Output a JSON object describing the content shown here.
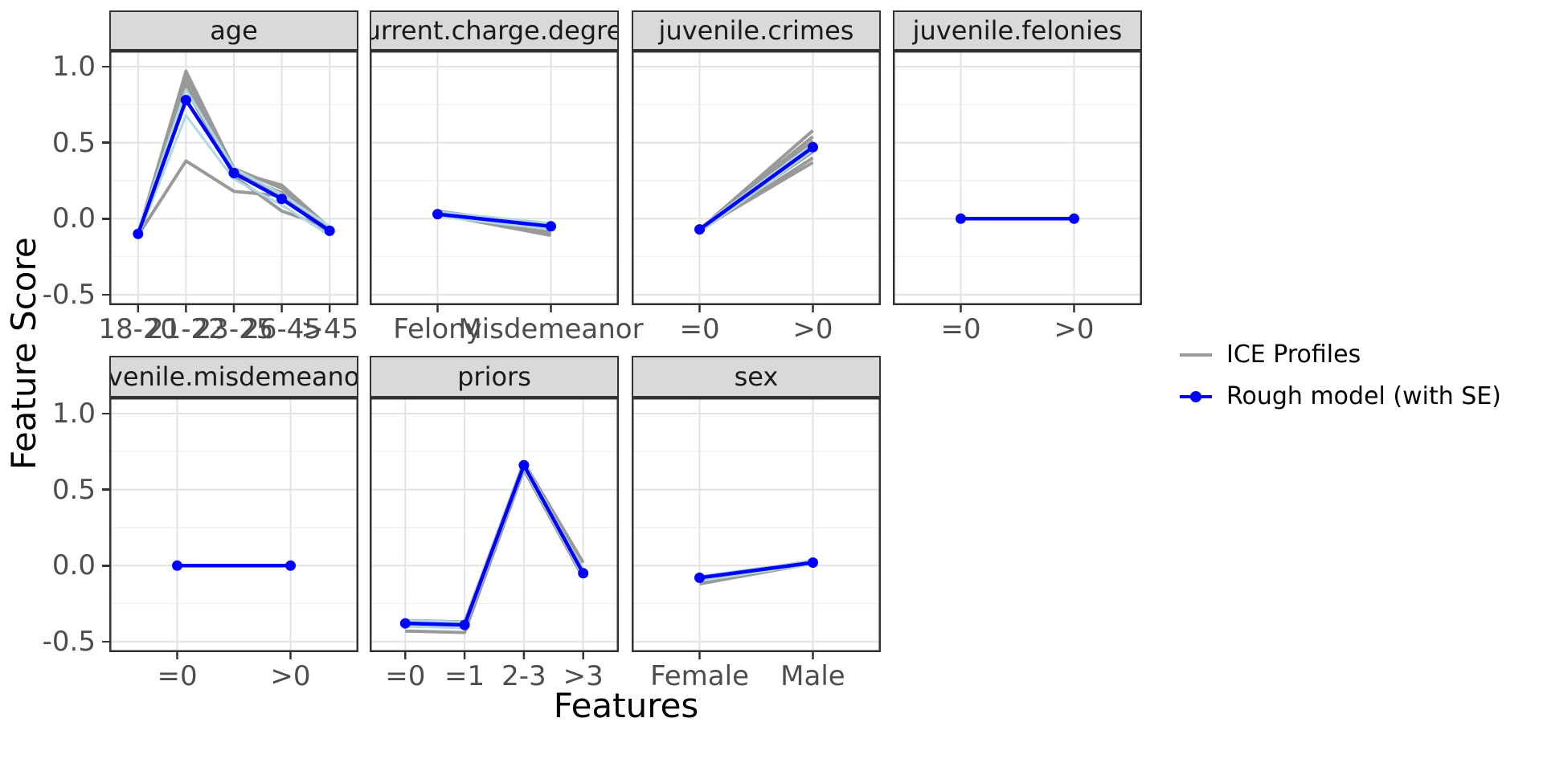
{
  "figure": {
    "y_axis_title": "Feature Score",
    "x_axis_title": "Features",
    "y_ticks": [
      "1.0",
      "0.5",
      "0.0",
      "-0.5"
    ],
    "y_tick_values": [
      1.0,
      0.5,
      0.0,
      -0.5
    ],
    "y_minor_values": [
      0.75,
      0.25,
      -0.25
    ],
    "legend": [
      {
        "label": "ICE Profiles",
        "key": "gray-line",
        "color": "#999999"
      },
      {
        "label": "Rough model (with SE)",
        "key": "blue-line-with-point",
        "color": "#0000FF"
      }
    ],
    "colors": {
      "ice": "#999999",
      "rough": "#0000FF",
      "se": "#ADD8E6",
      "grid_major": "#e3e3e3",
      "grid_minor": "#f1f1f1",
      "frame": "#333333",
      "strip_bg": "#d9d9d9",
      "tick": "#333333",
      "tick_text": "#4d4d4d"
    }
  },
  "chart_data": {
    "type": "line",
    "title": "",
    "xlabel": "Features",
    "ylabel": "Feature Score",
    "ylim": [
      -0.57,
      1.1
    ],
    "y_major_ticks": [
      1.0,
      0.5,
      0.0,
      -0.5
    ],
    "y_minor_ticks": [
      0.75,
      0.25,
      -0.25
    ],
    "grid": true,
    "legend_position": "right",
    "legend_entries": [
      "ICE Profiles",
      "Rough model (with SE)"
    ],
    "facets": [
      {
        "name": "age",
        "row": 0,
        "col": 0,
        "categories": [
          "18-20",
          "21-22",
          "23-25",
          "26-45",
          ">45"
        ],
        "ice_profiles": [
          [
            -0.1,
            0.97,
            0.33,
            0.2,
            -0.07
          ],
          [
            -0.1,
            0.93,
            0.31,
            0.22,
            -0.06
          ],
          [
            -0.1,
            0.9,
            0.3,
            0.17,
            -0.09
          ],
          [
            -0.1,
            0.87,
            0.29,
            0.16,
            -0.1
          ],
          [
            -0.1,
            0.86,
            0.28,
            0.05,
            -0.06
          ],
          [
            -0.11,
            0.38,
            0.18,
            0.15,
            -0.08
          ]
        ],
        "se_upper": [
          -0.08,
          0.85,
          0.33,
          0.16,
          -0.05
        ],
        "se_lower": [
          -0.12,
          0.68,
          0.26,
          0.09,
          -0.11
        ],
        "rough_model": [
          -0.1,
          0.78,
          0.3,
          0.13,
          -0.08
        ]
      },
      {
        "name": "current.charge.degree",
        "row": 0,
        "col": 1,
        "categories": [
          "Felony",
          "Misdemeanor"
        ],
        "ice_profiles": [
          [
            0.05,
            -0.05
          ],
          [
            0.04,
            -0.07
          ],
          [
            0.03,
            -0.09
          ],
          [
            0.03,
            -0.11
          ],
          [
            0.02,
            -0.06
          ]
        ],
        "se_upper": [
          0.045,
          -0.03
        ],
        "se_lower": [
          0.015,
          -0.07
        ],
        "rough_model": [
          0.03,
          -0.05
        ]
      },
      {
        "name": "juvenile.crimes",
        "row": 0,
        "col": 2,
        "categories": [
          "=0",
          ">0"
        ],
        "ice_profiles": [
          [
            -0.07,
            0.58
          ],
          [
            -0.07,
            0.54
          ],
          [
            -0.08,
            0.51
          ],
          [
            -0.07,
            0.49
          ],
          [
            -0.07,
            0.44
          ],
          [
            -0.08,
            0.4
          ],
          [
            -0.07,
            0.37
          ]
        ],
        "se_upper": [
          -0.06,
          0.49
        ],
        "se_lower": [
          -0.09,
          0.45
        ],
        "rough_model": [
          -0.07,
          0.47
        ]
      },
      {
        "name": "juvenile.felonies",
        "row": 0,
        "col": 3,
        "categories": [
          "=0",
          ">0"
        ],
        "ice_profiles": [
          [
            0.0,
            0.0
          ]
        ],
        "se_upper": [
          0.0,
          0.0
        ],
        "se_lower": [
          0.0,
          0.0
        ],
        "rough_model": [
          0.0,
          0.0
        ]
      },
      {
        "name": "juvenile.misdemeanors",
        "row": 1,
        "col": 0,
        "categories": [
          "=0",
          ">0"
        ],
        "ice_profiles": [
          [
            0.0,
            0.0
          ]
        ],
        "se_upper": [
          0.0,
          0.0
        ],
        "se_lower": [
          0.0,
          0.0
        ],
        "rough_model": [
          0.0,
          0.0
        ]
      },
      {
        "name": "priors",
        "row": 1,
        "col": 1,
        "categories": [
          "=0",
          "=1",
          "2-3",
          ">3"
        ],
        "ice_profiles": [
          [
            -0.36,
            -0.37,
            0.68,
            0.02
          ],
          [
            -0.43,
            -0.44,
            0.63,
            -0.08
          ],
          [
            -0.37,
            -0.38,
            0.67,
            -0.03
          ]
        ],
        "se_upper": [
          -0.36,
          -0.37,
          0.68,
          -0.03
        ],
        "se_lower": [
          -0.4,
          -0.41,
          0.64,
          -0.07
        ],
        "rough_model": [
          -0.38,
          -0.39,
          0.66,
          -0.05
        ]
      },
      {
        "name": "sex",
        "row": 1,
        "col": 2,
        "categories": [
          "Female",
          "Male"
        ],
        "ice_profiles": [
          [
            -0.1,
            0.02
          ],
          [
            -0.12,
            0.015
          ],
          [
            -0.08,
            0.03
          ]
        ],
        "se_upper": [
          -0.07,
          0.03
        ],
        "se_lower": [
          -0.1,
          0.01
        ],
        "rough_model": [
          -0.08,
          0.02
        ]
      }
    ]
  }
}
